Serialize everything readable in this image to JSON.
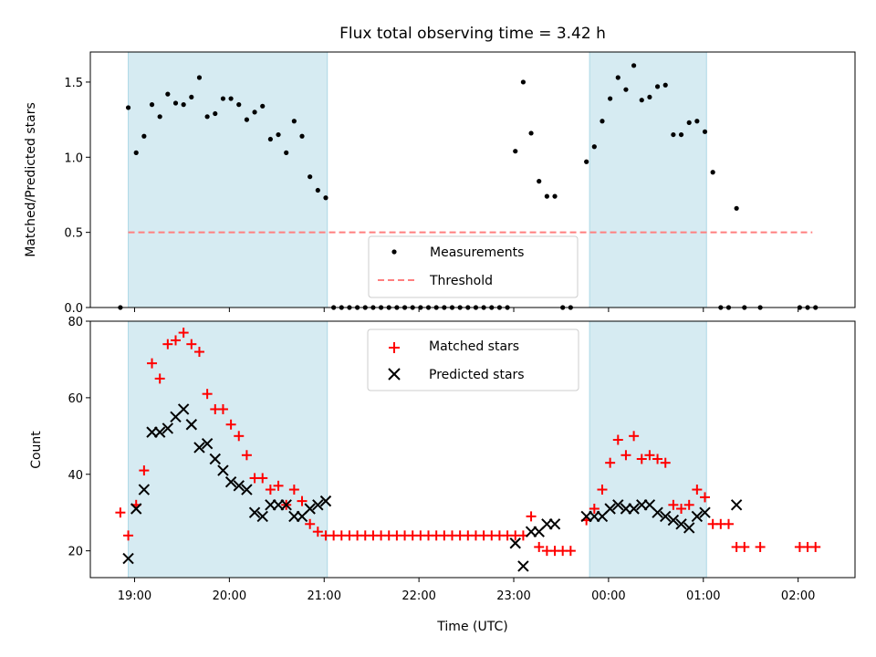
{
  "chart_data": [
    {
      "type": "scatter",
      "title": "Flux total observing time = 3.42 h",
      "xlabel": "",
      "ylabel": "Matched/Predicted stars",
      "xlim": [
        "18:32",
        "02:36"
      ],
      "ylim": [
        0,
        1.7
      ],
      "yticks": [
        0.0,
        0.5,
        1.0,
        1.5
      ],
      "ytick_labels": [
        "0.0",
        "0.5",
        "1.0",
        "1.5"
      ],
      "grid": false,
      "legend_position": "bottom-center",
      "shaded_intervals": [
        [
          "18:56",
          "21:02"
        ],
        [
          "23:48",
          "01:02"
        ]
      ],
      "shade_color": "#add8e6",
      "threshold": {
        "name": "Threshold",
        "y": 0.5,
        "x_start": "18:56",
        "x_end": "02:09",
        "color": "#ff7f7f"
      },
      "series": [
        {
          "name": "Measurements",
          "marker": "dot",
          "color": "#000000",
          "points": [
            [
              "18:51",
              0.0
            ],
            [
              "18:56",
              1.33
            ],
            [
              "19:01",
              1.03
            ],
            [
              "19:06",
              1.14
            ],
            [
              "19:11",
              1.35
            ],
            [
              "19:16",
              1.27
            ],
            [
              "19:21",
              1.42
            ],
            [
              "19:26",
              1.36
            ],
            [
              "19:31",
              1.35
            ],
            [
              "19:36",
              1.4
            ],
            [
              "19:41",
              1.53
            ],
            [
              "19:46",
              1.27
            ],
            [
              "19:51",
              1.29
            ],
            [
              "19:56",
              1.39
            ],
            [
              "20:01",
              1.39
            ],
            [
              "20:06",
              1.35
            ],
            [
              "20:11",
              1.25
            ],
            [
              "20:16",
              1.3
            ],
            [
              "20:21",
              1.34
            ],
            [
              "20:26",
              1.12
            ],
            [
              "20:31",
              1.15
            ],
            [
              "20:36",
              1.03
            ],
            [
              "20:41",
              1.24
            ],
            [
              "20:46",
              1.14
            ],
            [
              "20:51",
              0.87
            ],
            [
              "20:56",
              0.78
            ],
            [
              "21:01",
              0.73
            ],
            [
              "21:06",
              0.0
            ],
            [
              "21:11",
              0.0
            ],
            [
              "21:16",
              0.0
            ],
            [
              "21:21",
              0.0
            ],
            [
              "21:26",
              0.0
            ],
            [
              "21:31",
              0.0
            ],
            [
              "21:36",
              0.0
            ],
            [
              "21:41",
              0.0
            ],
            [
              "21:46",
              0.0
            ],
            [
              "21:51",
              0.0
            ],
            [
              "21:56",
              0.0
            ],
            [
              "22:01",
              0.0
            ],
            [
              "22:06",
              0.0
            ],
            [
              "22:11",
              0.0
            ],
            [
              "22:16",
              0.0
            ],
            [
              "22:21",
              0.0
            ],
            [
              "22:26",
              0.0
            ],
            [
              "22:31",
              0.0
            ],
            [
              "22:36",
              0.0
            ],
            [
              "22:41",
              0.0
            ],
            [
              "22:46",
              0.0
            ],
            [
              "22:51",
              0.0
            ],
            [
              "22:56",
              0.0
            ],
            [
              "23:01",
              1.04
            ],
            [
              "23:06",
              1.5
            ],
            [
              "23:11",
              1.16
            ],
            [
              "23:16",
              0.84
            ],
            [
              "23:21",
              0.74
            ],
            [
              "23:26",
              0.74
            ],
            [
              "23:31",
              0.0
            ],
            [
              "23:36",
              0.0
            ],
            [
              "23:46",
              0.97
            ],
            [
              "23:51",
              1.07
            ],
            [
              "23:56",
              1.24
            ],
            [
              "00:01",
              1.39
            ],
            [
              "00:06",
              1.53
            ],
            [
              "00:11",
              1.45
            ],
            [
              "00:16",
              1.61
            ],
            [
              "00:21",
              1.38
            ],
            [
              "00:26",
              1.4
            ],
            [
              "00:31",
              1.47
            ],
            [
              "00:36",
              1.48
            ],
            [
              "00:41",
              1.15
            ],
            [
              "00:46",
              1.15
            ],
            [
              "00:51",
              1.23
            ],
            [
              "00:56",
              1.24
            ],
            [
              "01:01",
              1.17
            ],
            [
              "01:06",
              0.9
            ],
            [
              "01:11",
              0.0
            ],
            [
              "01:16",
              0.0
            ],
            [
              "01:21",
              0.66
            ],
            [
              "01:26",
              0.0
            ],
            [
              "01:36",
              0.0
            ],
            [
              "02:01",
              0.0
            ],
            [
              "02:06",
              0.0
            ],
            [
              "02:11",
              0.0
            ]
          ]
        }
      ]
    },
    {
      "type": "scatter",
      "title": "",
      "xlabel": "Time (UTC)",
      "ylabel": "Count",
      "xlim": [
        "18:32",
        "02:36"
      ],
      "ylim": [
        13,
        80
      ],
      "yticks": [
        20,
        40,
        60,
        80
      ],
      "ytick_labels": [
        "20",
        "40",
        "60",
        "80"
      ],
      "xticks": [
        "19:00",
        "20:00",
        "21:00",
        "22:00",
        "23:00",
        "00:00",
        "01:00",
        "02:00"
      ],
      "xtick_labels": [
        "19:00",
        "20:00",
        "21:00",
        "22:00",
        "23:00",
        "00:00",
        "01:00",
        "02:00"
      ],
      "grid": false,
      "legend_position": "top-center",
      "shaded_intervals": [
        [
          "18:56",
          "21:02"
        ],
        [
          "23:48",
          "01:02"
        ]
      ],
      "shade_color": "#add8e6",
      "series": [
        {
          "name": "Matched stars",
          "marker": "plus",
          "color": "#ff0000",
          "points": [
            [
              "18:51",
              30
            ],
            [
              "18:56",
              24
            ],
            [
              "19:01",
              32
            ],
            [
              "19:06",
              41
            ],
            [
              "19:11",
              69
            ],
            [
              "19:16",
              65
            ],
            [
              "19:21",
              74
            ],
            [
              "19:26",
              75
            ],
            [
              "19:31",
              77
            ],
            [
              "19:36",
              74
            ],
            [
              "19:41",
              72
            ],
            [
              "19:46",
              61
            ],
            [
              "19:51",
              57
            ],
            [
              "19:56",
              57
            ],
            [
              "20:01",
              53
            ],
            [
              "20:06",
              50
            ],
            [
              "20:11",
              45
            ],
            [
              "20:16",
              39
            ],
            [
              "20:21",
              39
            ],
            [
              "20:26",
              36
            ],
            [
              "20:31",
              37
            ],
            [
              "20:36",
              32
            ],
            [
              "20:41",
              36
            ],
            [
              "20:46",
              33
            ],
            [
              "20:51",
              27
            ],
            [
              "20:56",
              25
            ],
            [
              "21:01",
              24
            ],
            [
              "21:06",
              24
            ],
            [
              "21:11",
              24
            ],
            [
              "21:16",
              24
            ],
            [
              "21:21",
              24
            ],
            [
              "21:26",
              24
            ],
            [
              "21:31",
              24
            ],
            [
              "21:36",
              24
            ],
            [
              "21:41",
              24
            ],
            [
              "21:46",
              24
            ],
            [
              "21:51",
              24
            ],
            [
              "21:56",
              24
            ],
            [
              "22:01",
              24
            ],
            [
              "22:06",
              24
            ],
            [
              "22:11",
              24
            ],
            [
              "22:16",
              24
            ],
            [
              "22:21",
              24
            ],
            [
              "22:26",
              24
            ],
            [
              "22:31",
              24
            ],
            [
              "22:36",
              24
            ],
            [
              "22:41",
              24
            ],
            [
              "22:46",
              24
            ],
            [
              "22:51",
              24
            ],
            [
              "22:56",
              24
            ],
            [
              "23:01",
              24
            ],
            [
              "23:06",
              24
            ],
            [
              "23:11",
              29
            ],
            [
              "23:16",
              21
            ],
            [
              "23:21",
              20
            ],
            [
              "23:26",
              20
            ],
            [
              "23:31",
              20
            ],
            [
              "23:36",
              20
            ],
            [
              "23:46",
              28
            ],
            [
              "23:51",
              31
            ],
            [
              "23:56",
              36
            ],
            [
              "00:01",
              43
            ],
            [
              "00:06",
              49
            ],
            [
              "00:11",
              45
            ],
            [
              "00:16",
              50
            ],
            [
              "00:21",
              44
            ],
            [
              "00:26",
              45
            ],
            [
              "00:31",
              44
            ],
            [
              "00:36",
              43
            ],
            [
              "00:41",
              32
            ],
            [
              "00:46",
              31
            ],
            [
              "00:51",
              32
            ],
            [
              "00:56",
              36
            ],
            [
              "01:01",
              34
            ],
            [
              "01:06",
              27
            ],
            [
              "01:11",
              27
            ],
            [
              "01:16",
              27
            ],
            [
              "01:21",
              21
            ],
            [
              "01:26",
              21
            ],
            [
              "01:36",
              21
            ],
            [
              "02:01",
              21
            ],
            [
              "02:06",
              21
            ],
            [
              "02:11",
              21
            ]
          ]
        },
        {
          "name": "Predicted stars",
          "marker": "x",
          "color": "#000000",
          "points": [
            [
              "18:56",
              18
            ],
            [
              "19:01",
              31
            ],
            [
              "19:06",
              36
            ],
            [
              "19:11",
              51
            ],
            [
              "19:16",
              51
            ],
            [
              "19:21",
              52
            ],
            [
              "19:26",
              55
            ],
            [
              "19:31",
              57
            ],
            [
              "19:36",
              53
            ],
            [
              "19:41",
              47
            ],
            [
              "19:46",
              48
            ],
            [
              "19:51",
              44
            ],
            [
              "19:56",
              41
            ],
            [
              "20:01",
              38
            ],
            [
              "20:06",
              37
            ],
            [
              "20:11",
              36
            ],
            [
              "20:16",
              30
            ],
            [
              "20:21",
              29
            ],
            [
              "20:26",
              32
            ],
            [
              "20:31",
              32
            ],
            [
              "20:36",
              32
            ],
            [
              "20:41",
              29
            ],
            [
              "20:46",
              29
            ],
            [
              "20:51",
              31
            ],
            [
              "20:56",
              32
            ],
            [
              "21:01",
              33
            ],
            [
              "23:01",
              22
            ],
            [
              "23:06",
              16
            ],
            [
              "23:11",
              25
            ],
            [
              "23:16",
              25
            ],
            [
              "23:21",
              27
            ],
            [
              "23:26",
              27
            ],
            [
              "23:46",
              29
            ],
            [
              "23:51",
              29
            ],
            [
              "23:56",
              29
            ],
            [
              "00:01",
              31
            ],
            [
              "00:06",
              32
            ],
            [
              "00:11",
              31
            ],
            [
              "00:16",
              31
            ],
            [
              "00:21",
              32
            ],
            [
              "00:26",
              32
            ],
            [
              "00:31",
              30
            ],
            [
              "00:36",
              29
            ],
            [
              "00:41",
              28
            ],
            [
              "00:46",
              27
            ],
            [
              "00:51",
              26
            ],
            [
              "00:56",
              29
            ],
            [
              "01:01",
              30
            ],
            [
              "01:21",
              32
            ]
          ]
        }
      ]
    }
  ]
}
